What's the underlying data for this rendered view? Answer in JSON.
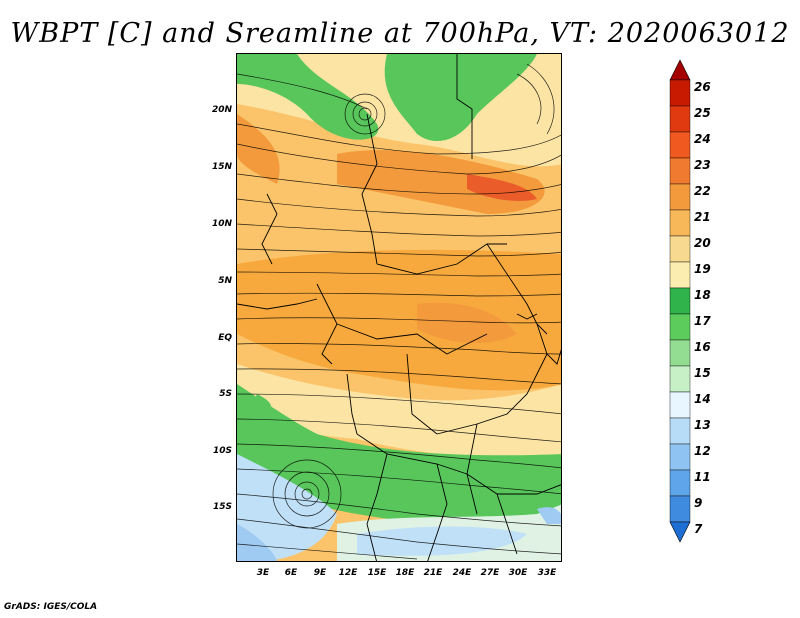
{
  "title": "WBPT [C] and Sreamline at 700hPa, VT: 2020063012",
  "footer": "GrADS: IGES/COLA",
  "lat_labels": [
    "20N",
    "15N",
    "10N",
    "5N",
    "EQ",
    "5S",
    "10S",
    "15S"
  ],
  "lon_labels": [
    "3E",
    "6E",
    "9E",
    "12E",
    "15E",
    "18E",
    "21E",
    "24E",
    "27E",
    "30E",
    "33E"
  ],
  "colorbar": {
    "labels": [
      "26",
      "25",
      "24",
      "23",
      "22",
      "21",
      "20",
      "19",
      "18",
      "17",
      "16",
      "15",
      "14",
      "13",
      "12",
      "11",
      "9",
      "7"
    ],
    "colors": [
      "#a50000",
      "#c81a00",
      "#e03a10",
      "#f05a20",
      "#f07a30",
      "#f39a3c",
      "#f7b85a",
      "#f7d98f",
      "#fbecb0",
      "#2fb34a",
      "#5ccc5c",
      "#93dd93",
      "#c7f0c7",
      "#e8f6ff",
      "#b7dcf7",
      "#8fc4f2",
      "#5ea5ea",
      "#3f8be0",
      "#1f6ed4"
    ]
  },
  "map_colors": {
    "orange": "#f7a93d",
    "light_orange": "#fbc46a",
    "yellow": "#fbe4a4",
    "green": "#58c65a",
    "light_green": "#9ad99b",
    "pale": "#dff2e4",
    "light_blue": "#bfe0f7",
    "mid_blue": "#9fcaf2",
    "red": "#ea5c2a"
  }
}
